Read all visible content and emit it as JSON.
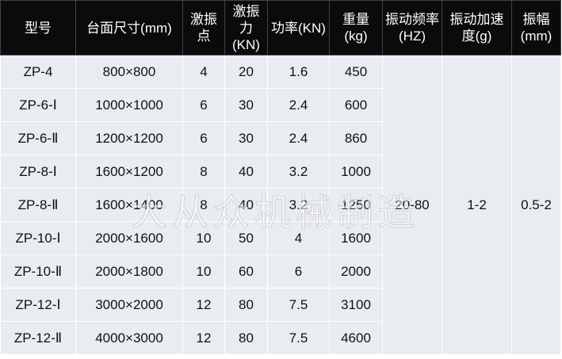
{
  "headers": [
    "型号",
    "台面尺寸(mm)",
    "激振点",
    "激振力(KN)",
    "功率(KN)",
    "重量(kg)",
    "振动频率(HZ)",
    "振动加速度(g)",
    "振幅(mm)"
  ],
  "rows": [
    [
      "ZP-4",
      "800×800",
      "4",
      "20",
      "1.6",
      "450"
    ],
    [
      "ZP-6-Ⅰ",
      "1000×1000",
      "6",
      "30",
      "2.4",
      "600"
    ],
    [
      "ZP-6-Ⅱ",
      "1200×1200",
      "6",
      "30",
      "2.4",
      "860"
    ],
    [
      "ZP-8-Ⅰ",
      "1600×1200",
      "8",
      "40",
      "3.2",
      "1000"
    ],
    [
      "ZP-8-Ⅱ",
      "1600×1400",
      "8",
      "40",
      "3.2",
      "1250"
    ],
    [
      "ZP-10-Ⅰ",
      "2000×1600",
      "10",
      "50",
      "4",
      "1600"
    ],
    [
      "ZP-10-Ⅱ",
      "2000×1800",
      "10",
      "60",
      "6",
      "2000"
    ],
    [
      "ZP-12-Ⅰ",
      "3000×2000",
      "12",
      "80",
      "7.5",
      "3100"
    ],
    [
      "ZP-12-Ⅱ",
      "4000×3000",
      "12",
      "80",
      "7.5",
      "4600"
    ]
  ],
  "shared": {
    "frequency": "20-80",
    "acceleration": "1-2",
    "amplitude": "0.5-2"
  },
  "watermark": "大从众机械制造",
  "colors": {
    "header_bg": "#0b0b0b",
    "cell_bg": "#e9ecf1"
  }
}
